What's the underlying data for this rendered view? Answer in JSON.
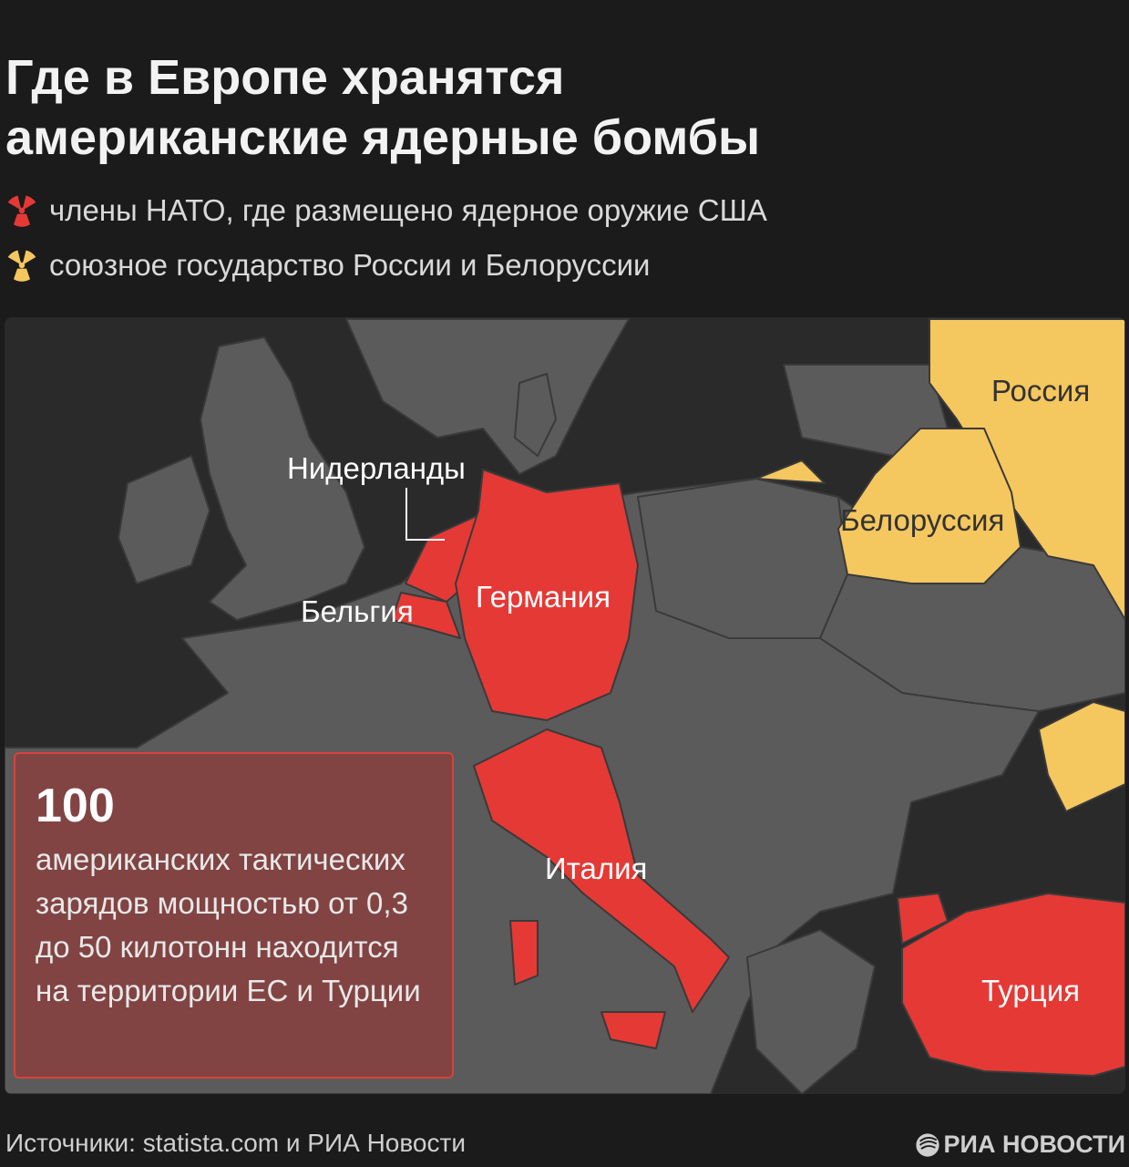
{
  "header": {
    "title_line1": "Где в Европе хранятся",
    "title_line2": "американские ядерные бомбы"
  },
  "legend": [
    {
      "icon": "radiation-icon",
      "color": "#e53935",
      "label": "члены НАТО, где размещено ядерное оружие США"
    },
    {
      "icon": "radiation-icon",
      "color": "#f5c75f",
      "label": "союзное государство России и Белоруссии"
    }
  ],
  "colors": {
    "background": "#1b1b1b",
    "sea": "#2a2a2a",
    "land": "#5b5b5b",
    "nato_nuclear": "#e53935",
    "union_state": "#f5c75f"
  },
  "map": {
    "labels": {
      "netherlands": "Нидерланды",
      "belgium": "Бельгия",
      "germany": "Германия",
      "italy": "Италия",
      "turkey": "Турция",
      "russia": "Россия",
      "belarus": "Белоруссия"
    }
  },
  "infobox": {
    "number": "100",
    "text": "американских тактических зарядов мощностью от 0,3 до 50 килотонн находится на территории ЕС и Турции"
  },
  "footer": {
    "sources": "Источники: statista.com и РИА Новости",
    "logo": "РИА НОВОСТИ"
  }
}
